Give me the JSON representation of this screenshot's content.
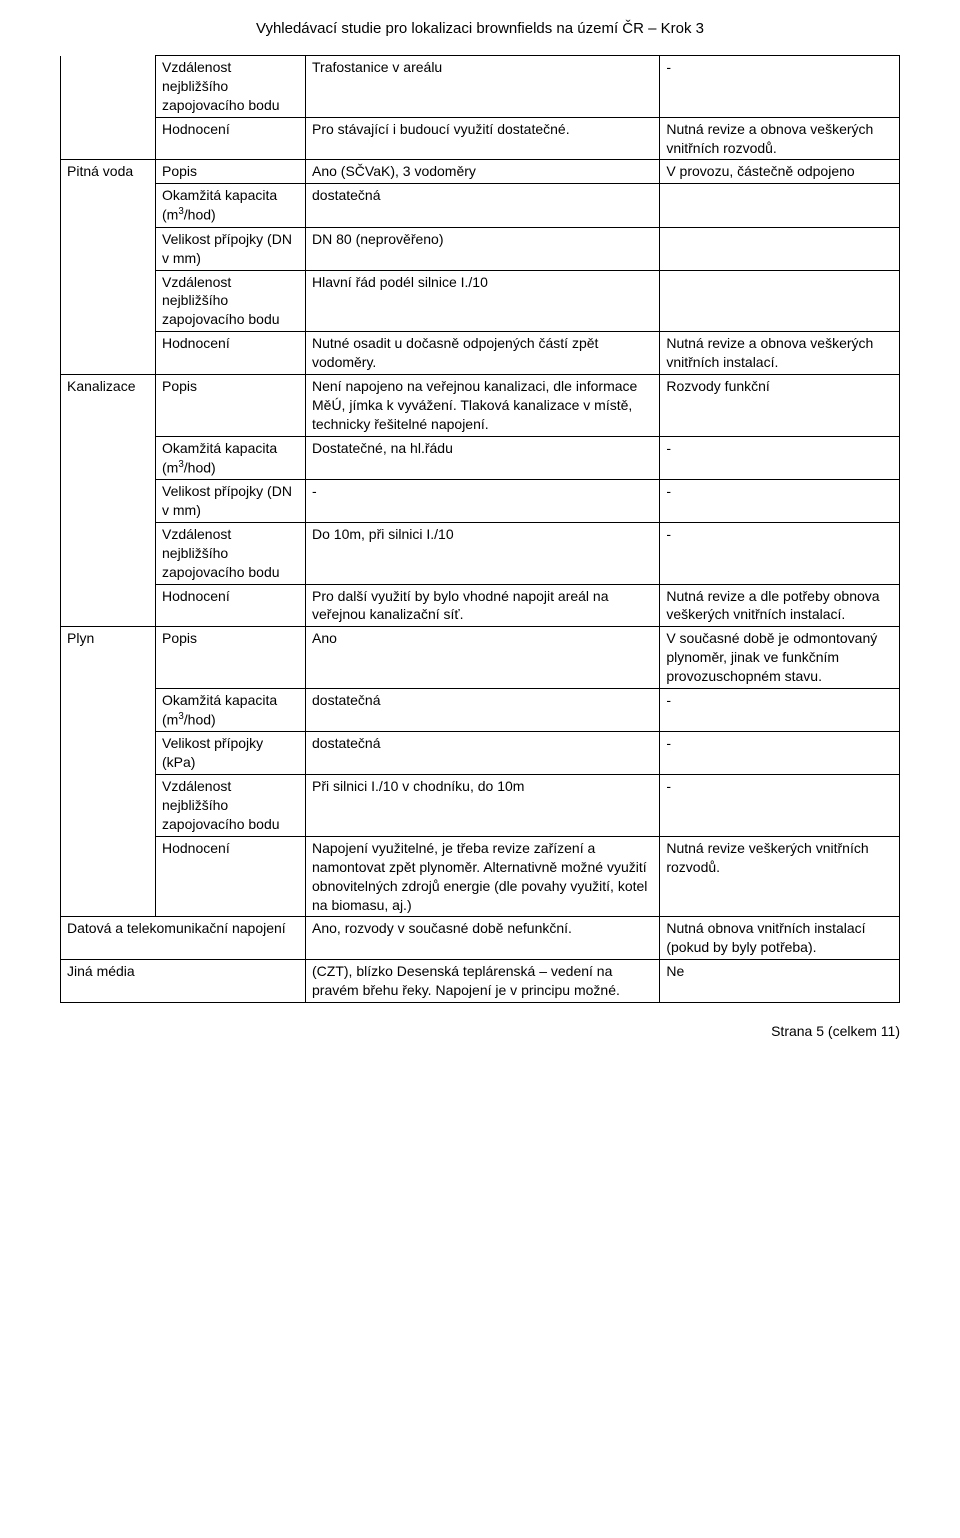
{
  "header": "Vyhledávací studie pro lokalizaci brownfields na území ČR – Krok 3",
  "footer": "Strana 5 (celkem 11)",
  "labels": {
    "popis": "Popis",
    "kapacita_pre": "Okamžitá kapacita (m",
    "kapacita_post": "/hod)",
    "velikost_dn": "Velikost přípojky (DN v mm)",
    "velikost_kpa": "Velikost přípojky (kPa)",
    "vzdalenost": "Vzdálenost nejbližšího zapojovacího bodu",
    "hodnoceni": "Hodnocení"
  },
  "sections": {
    "top": {
      "vzdalenost_c2": "Trafostanice v areálu",
      "vzdalenost_c3": "-",
      "hodnoceni_c2": "Pro stávající i budoucí využití dostatečné.",
      "hodnoceni_c3": "Nutná revize a obnova veškerých vnitřních rozvodů."
    },
    "pitna": {
      "title": "Pitná voda",
      "popis_c2": "Ano (SČVaK), 3 vodoměry",
      "popis_c3": "V provozu, částečně odpojeno",
      "kapacita_c2": "dostatečná",
      "kapacita_c3": "",
      "velikost_c2": "DN 80 (neprověřeno)",
      "velikost_c3": "",
      "vzdalenost_c2": "Hlavní řád podél silnice I./10",
      "vzdalenost_c3": "",
      "hodnoceni_c2": "Nutné osadit u dočasně odpojených částí zpět vodoměry.",
      "hodnoceni_c3": "Nutná revize a obnova veškerých vnitřních instalací."
    },
    "kanal": {
      "title": "Kanalizace",
      "popis_c2": "Není napojeno na veřejnou kanalizaci, dle informace MěÚ, jímka k vyvážení. Tlaková kanalizace v místě, technicky řešitelné napojení.",
      "popis_c3": "Rozvody funkční",
      "kapacita_c2": "Dostatečné, na hl.řádu",
      "kapacita_c3": "-",
      "velikost_c2": " -",
      "velikost_c3": "-",
      "vzdalenost_c2": "Do 10m, při silnici I./10",
      "vzdalenost_c3": "-",
      "hodnoceni_c2": "Pro další využití by bylo vhodné napojit areál na veřejnou kanalizační síť.",
      "hodnoceni_c3": "Nutná revize a dle potřeby obnova veškerých vnitřních instalací."
    },
    "plyn": {
      "title": "Plyn",
      "popis_c2": "Ano",
      "popis_c3": "V současné době je odmontovaný plynoměr, jinak ve funkčním provozuschopném stavu.",
      "kapacita_c2": "dostatečná",
      "kapacita_c3": "-",
      "velikost_c2": "dostatečná",
      "velikost_c3": "-",
      "vzdalenost_c2": "Při silnici I./10 v chodníku, do 10m",
      "vzdalenost_c3": "-",
      "hodnoceni_c2": "Napojení využitelné, je třeba revize zařízení a namontovat zpět plynoměr. Alternativně možné využití obnovitelných zdrojů energie (dle povahy využití, kotel na biomasu, aj.)",
      "hodnoceni_c3": "Nutná revize veškerých vnitřních rozvodů."
    },
    "datova": {
      "title": "Datová a telekomunikační napojení",
      "c2": "Ano, rozvody v současné době nefunkční.",
      "c3": "Nutná obnova vnitřních instalací (pokud by byly potřeba)."
    },
    "jina": {
      "title": "Jiná média",
      "c2": "(CZT), blízko Desenská teplárenská – vedení na pravém břehu řeky. Napojení je v principu možné.",
      "c3": "Ne"
    }
  }
}
